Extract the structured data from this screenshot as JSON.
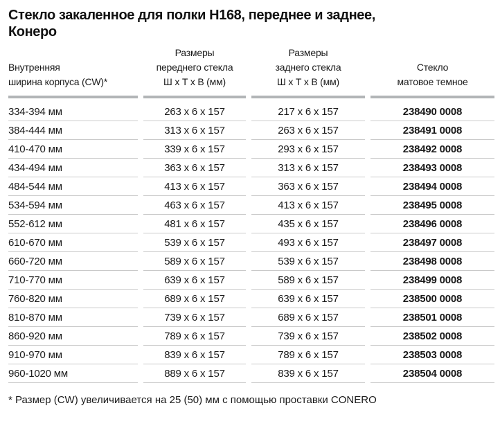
{
  "title": {
    "line1": "Стекло закаленное для полки H168, переднее и заднее,",
    "line2": "Конеро"
  },
  "table": {
    "headers": {
      "cw": {
        "lines": [
          "Внутренняя",
          "ширина корпуса (CW)*"
        ]
      },
      "front": {
        "lines": [
          "Размеры",
          "переднего стекла",
          "Ш х Т х В (мм)"
        ]
      },
      "back": {
        "lines": [
          "Размеры",
          "заднего стекла",
          "Ш х Т х В (мм)"
        ]
      },
      "article": {
        "lines": [
          "Стекло",
          "матовое темное"
        ]
      }
    },
    "rows": [
      {
        "cw": "334-394 мм",
        "front": "263 x 6 x 157",
        "back": "217 x 6 x 157",
        "article": "238490 0008"
      },
      {
        "cw": "384-444 мм",
        "front": "313 x 6 x 157",
        "back": "263 x 6 x 157",
        "article": "238491 0008"
      },
      {
        "cw": "410-470 мм",
        "front": "339 x 6 x 157",
        "back": "293 x 6 x 157",
        "article": "238492 0008"
      },
      {
        "cw": "434-494 мм",
        "front": "363 x 6 x 157",
        "back": "313 x 6 x 157",
        "article": "238493 0008"
      },
      {
        "cw": "484-544 мм",
        "front": "413 x 6 x 157",
        "back": "363 x 6 x 157",
        "article": "238494 0008"
      },
      {
        "cw": "534-594 мм",
        "front": "463 x 6 x 157",
        "back": "413 x 6 x 157",
        "article": "238495 0008"
      },
      {
        "cw": "552-612 мм",
        "front": "481 x 6 x 157",
        "back": "435 x 6 x 157",
        "article": "238496 0008"
      },
      {
        "cw": "610-670 мм",
        "front": "539 x 6 x 157",
        "back": "493 x 6 x 157",
        "article": "238497 0008"
      },
      {
        "cw": "660-720 мм",
        "front": "589 x 6 x 157",
        "back": "539 x 6 x 157",
        "article": "238498 0008"
      },
      {
        "cw": "710-770 мм",
        "front": "639 x 6 x 157",
        "back": "589 x 6 x 157",
        "article": "238499 0008"
      },
      {
        "cw": "760-820 мм",
        "front": "689 x 6 x 157",
        "back": "639 x 6 x 157",
        "article": "238500 0008"
      },
      {
        "cw": "810-870 мм",
        "front": "739 x 6 x 157",
        "back": "689 x 6 x 157",
        "article": "238501 0008"
      },
      {
        "cw": "860-920 мм",
        "front": "789 x 6 x 157",
        "back": "739 x 6 x 157",
        "article": "238502 0008"
      },
      {
        "cw": "910-970 мм",
        "front": "839 x 6 x 157",
        "back": "789 x 6 x 157",
        "article": "238503 0008"
      },
      {
        "cw": "960-1020 мм",
        "front": "889 x 6 x 157",
        "back": "839 x 6 x 157",
        "article": "238504 0008"
      }
    ]
  },
  "footnote": "* Размер (CW) увеличивается на 25 (50) мм с помощью проставки CONERO",
  "colors": {
    "text": "#1a1a1a",
    "header_bar": "#b2b5b7",
    "row_divider": "#c9c9c9",
    "background": "#ffffff"
  }
}
